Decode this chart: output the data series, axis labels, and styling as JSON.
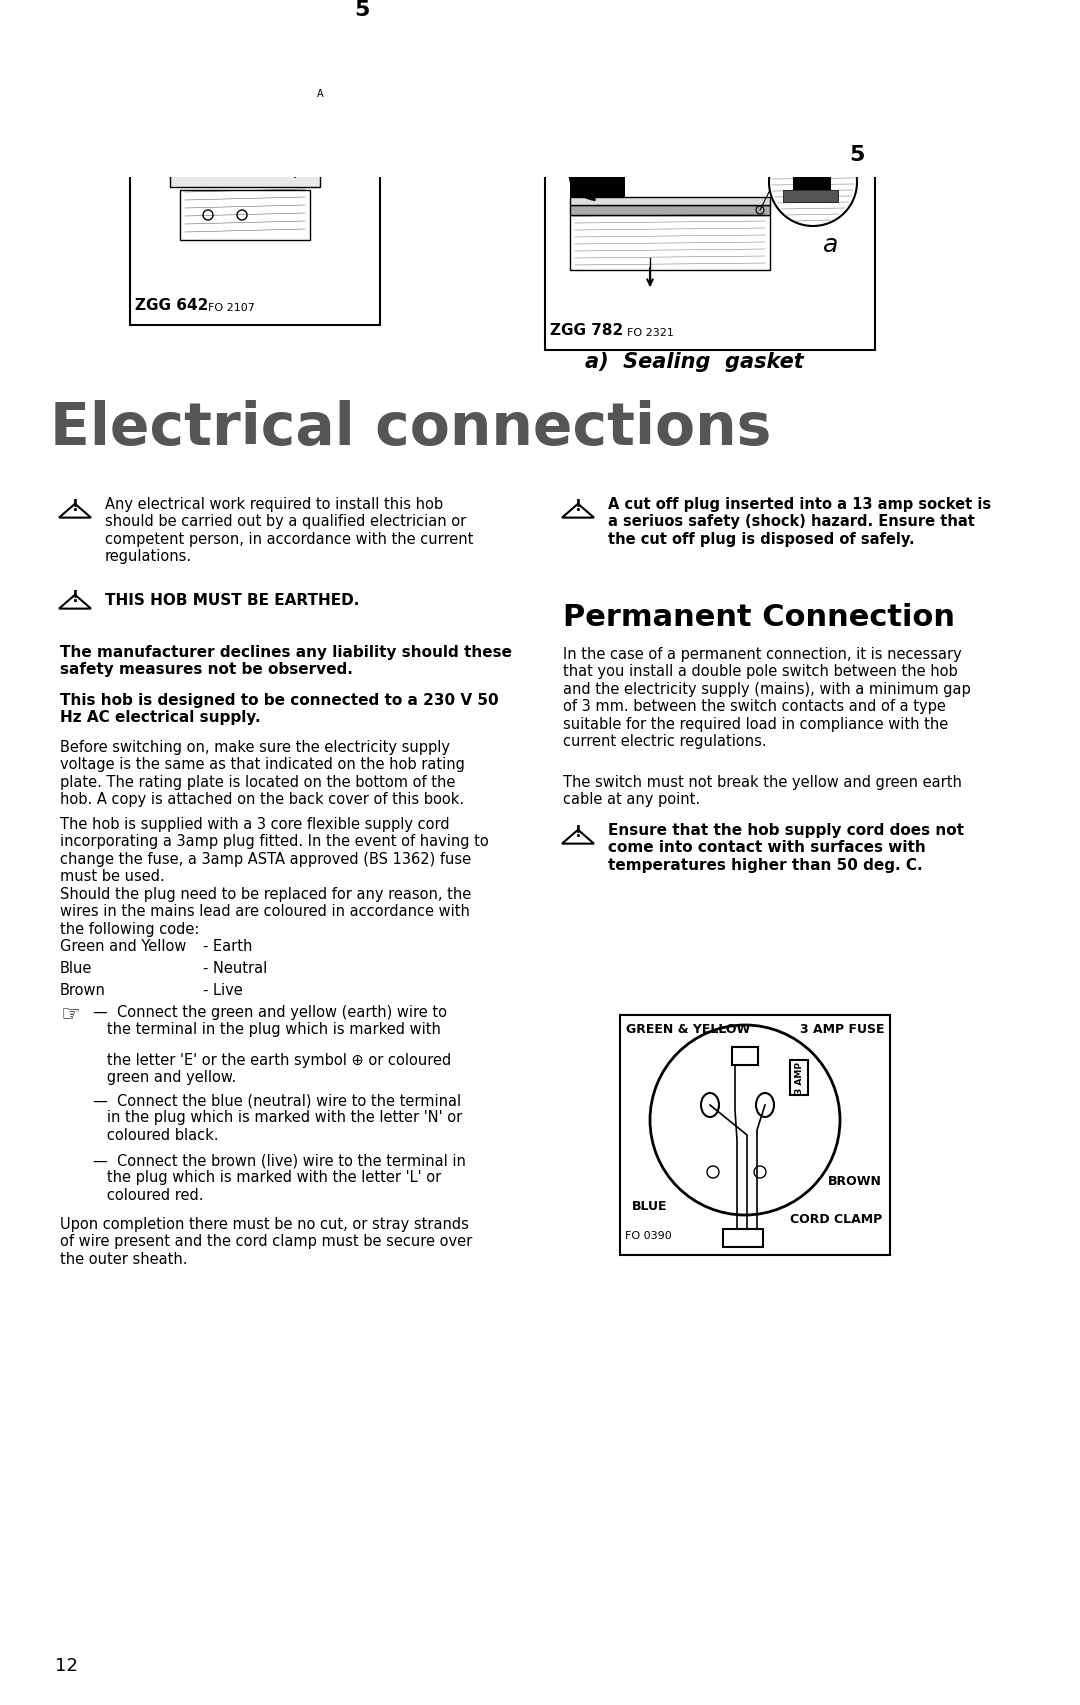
{
  "page_bg": "#ffffff",
  "page_number": "12",
  "title": "Electrical connections",
  "title_color": "#555555",
  "section_permanent": "Permanent Connection",
  "warning_left_1": "Any electrical work required to install this hob\nshould be carried out by a qualified electrician or\ncompetent person, in accordance with the current\nregulations.",
  "warning_left_2": "THIS HOB MUST BE EARTHED.",
  "bold_text_1": "The manufacturer declines any liability should these\nsafety measures not be observed.",
  "bold_text_2": "This hob is designed to be connected to a 230 V 50\nHz AC electrical supply.",
  "para1": "Before switching on, make sure the electricity supply\nvoltage is the same as that indicated on the hob rating\nplate. The rating plate is located on the bottom of the\nhob. A copy is attached on the back cover of this book.",
  "para2": "The hob is supplied with a 3 core flexible supply cord\nincorporating a 3amp plug fitted. In the event of having to\nchange the fuse, a 3amp ASTA approved (BS 1362) fuse\nmust be used.",
  "para3": "Should the plug need to be replaced for any reason, the\nwires in the mains lead are coloured in accordance with\nthe following code:",
  "wire_green": "Green and Yellow",
  "wire_green_val": "- Earth",
  "wire_blue": "Blue",
  "wire_blue_val": "- Neutral",
  "wire_brown": "Brown",
  "wire_brown_val": "- Live",
  "bullet1a": "—  Connect the green and yellow (earth) wire to\n   the terminal in the plug which is marked with",
  "bullet1b": "   the letter 'E' or the earth symbol ⊕ or coloured\n   green and yellow.",
  "bullet2": "—  Connect the blue (neutral) wire to the terminal\n   in the plug which is marked with the letter 'N' or\n   coloured black.",
  "bullet3": "—  Connect the brown (live) wire to the terminal in\n   the plug which is marked with the letter 'L' or\n   coloured red.",
  "para_final": "Upon completion there must be no cut, or stray strands\nof wire present and the cord clamp must be secure over\nthe outer sheath.",
  "warning_right_1": "A cut off plug inserted into a 13 amp socket is\na seriuos safety (shock) hazard. Ensure that\nthe cut off plug is disposed of safely.",
  "perm_conn_text": "In the case of a permanent connection, it is necessary\nthat you install a double pole switch between the hob\nand the electricity supply (mains), with a minimum gap\nof 3 mm. between the switch contacts and of a type\nsuitable for the required load in compliance with the\ncurrent electric regulations.",
  "switch_text": "The switch must not break the yellow and green earth\ncable at any point.",
  "warning_right_2": "Ensure that the hob supply cord does not\ncome into contact with surfaces with\ntemperatures higher than 50 deg. C.",
  "top_caption_right": "a)  Sealing  gasket",
  "zgg782_label": "ZGG 782",
  "fo2321_label": "FO 2321",
  "zgg642_label": "ZGG 642",
  "fo2107_label": "FO 2107",
  "fig5_label": "5",
  "plug_label_gy": "GREEN & YELLOW",
  "plug_label_fuse": "3 AMP FUSE",
  "plug_label_blue": "BLUE",
  "plug_label_brown": "BROWN",
  "plug_label_cord": "CORD CLAMP",
  "plug_fo": "FO 0390"
}
